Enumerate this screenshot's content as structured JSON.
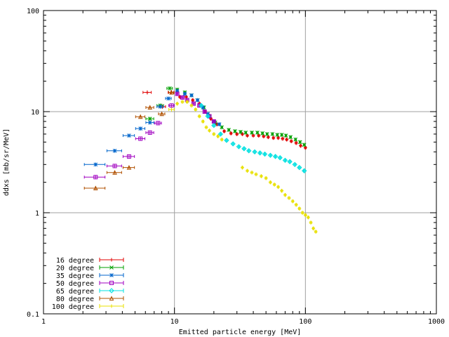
{
  "chart_data": {
    "type": "scatter",
    "title": "",
    "xlabel": "Emitted particle energy [MeV]",
    "ylabel": "ddxs [mb/sr/MeV]",
    "xscale": "log",
    "yscale": "log",
    "xlim": [
      1,
      1000
    ],
    "ylim": [
      0.1,
      100
    ],
    "x_ticks": [
      1,
      10,
      100,
      1000
    ],
    "x_tick_labels": [
      "1",
      "10",
      "100",
      "1000"
    ],
    "y_ticks": [
      0.1,
      1,
      10,
      100
    ],
    "y_tick_labels": [
      "0.1",
      "1",
      "10",
      "100"
    ],
    "grid": true,
    "legend_position": "bottom-left",
    "series": [
      {
        "name": "16 degree",
        "color": "#e00000",
        "marker": "plus",
        "x": [
          6.2,
          8.1,
          9.4,
          11,
          12.3,
          13.8,
          15.5,
          17.2,
          19,
          21,
          24,
          27,
          30,
          33,
          36,
          40,
          44,
          48,
          52,
          57,
          62,
          67,
          72,
          78,
          85,
          92,
          100
        ],
        "y": [
          15.5,
          11.2,
          15.5,
          14,
          14,
          13,
          12,
          10,
          8.5,
          7.5,
          6.4,
          6.1,
          6.0,
          6.0,
          5.8,
          5.8,
          5.8,
          5.7,
          5.6,
          5.5,
          5.5,
          5.4,
          5.3,
          5.1,
          4.9,
          4.6,
          4.4
        ]
      },
      {
        "name": "20 degree",
        "color": "#00a000",
        "marker": "cross",
        "x": [
          6.5,
          7.8,
          9.2,
          10.5,
          12,
          13.5,
          15,
          16.8,
          18.5,
          20.5,
          23,
          26,
          29,
          32,
          35,
          39,
          43,
          47,
          51,
          56,
          61,
          66,
          71,
          77,
          84,
          91,
          98
        ],
        "y": [
          8.5,
          11.5,
          17,
          16.5,
          15.5,
          14.5,
          13,
          11,
          9,
          7.8,
          7.0,
          6.6,
          6.4,
          6.3,
          6.2,
          6.2,
          6.2,
          6.1,
          6.0,
          6.0,
          5.9,
          5.9,
          5.8,
          5.6,
          5.3,
          5.0,
          4.7
        ]
      },
      {
        "name": "35 degree",
        "color": "#0066cc",
        "marker": "star",
        "x": [
          2.5,
          3.5,
          4.5,
          5.5,
          6.5,
          7.8,
          9,
          10.5,
          12,
          13.5,
          15,
          16.5,
          18,
          20,
          22
        ],
        "y": [
          3.0,
          4.1,
          5.8,
          6.8,
          7.8,
          11.2,
          13.5,
          16,
          15,
          14.5,
          13,
          11,
          9.5,
          8,
          7.5
        ]
      },
      {
        "name": "50 degree",
        "color": "#a000c0",
        "marker": "box",
        "x": [
          2.5,
          3.5,
          4.5,
          5.5,
          6.5,
          7.5,
          9.5,
          10.5,
          11.5,
          12.5,
          14,
          15.5,
          17,
          18.5,
          20
        ],
        "y": [
          2.25,
          2.9,
          3.6,
          5.4,
          6.2,
          7.7,
          11.5,
          15,
          13.8,
          13,
          12,
          11.5,
          10,
          9,
          8
        ]
      },
      {
        "name": "65 degree",
        "color": "#00e0e0",
        "marker": "diamond",
        "x": [
          16,
          18,
          20,
          22.5,
          25,
          28,
          31,
          34,
          37,
          41,
          45,
          49,
          54,
          59,
          64,
          70,
          76,
          83,
          90,
          98
        ],
        "y": [
          11.5,
          9.0,
          7.3,
          6.0,
          5.2,
          4.8,
          4.5,
          4.3,
          4.1,
          4.0,
          3.9,
          3.8,
          3.7,
          3.6,
          3.5,
          3.3,
          3.2,
          3.0,
          2.8,
          2.6
        ]
      },
      {
        "name": "80 degree",
        "color": "#b05000",
        "marker": "triangle",
        "x": [
          2.5,
          3.5,
          4.5,
          5.5,
          6.5,
          8,
          9.5
        ],
        "y": [
          1.75,
          2.5,
          2.8,
          8.9,
          11,
          9.5,
          15.5
        ]
      },
      {
        "name": "100 degree",
        "color": "#e8e000",
        "marker": "plus",
        "x": [
          9.5,
          10.5,
          11.5,
          12.5,
          13.5,
          14.5,
          15.5,
          16.5,
          17.5,
          18.5,
          20,
          21.5,
          23,
          33,
          36,
          39,
          42,
          46,
          50,
          54,
          58,
          62,
          66,
          70,
          75,
          80,
          85,
          90,
          95,
          100,
          105,
          110,
          115,
          120
        ],
        "y": [
          10.5,
          12,
          12.5,
          12.5,
          11.5,
          10.5,
          9,
          8,
          7,
          6.5,
          6,
          5.7,
          5.3,
          2.8,
          2.6,
          2.5,
          2.4,
          2.3,
          2.2,
          2.0,
          1.9,
          1.8,
          1.65,
          1.5,
          1.4,
          1.3,
          1.2,
          1.1,
          1.0,
          0.95,
          0.9,
          0.8,
          0.7,
          0.65
        ]
      }
    ]
  }
}
